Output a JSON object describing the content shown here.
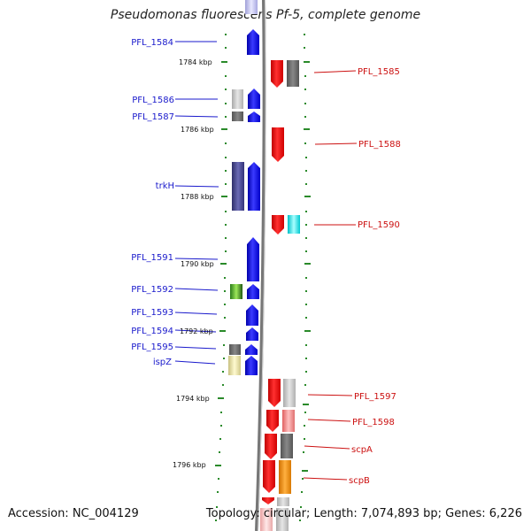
{
  "title": "Pseudomonas fluorescens Pf-5, complete genome",
  "footer": {
    "accession": "Accession: NC_004129",
    "topology": "Topology: circular; Length: 7,074,893 bp; Genes: 6,226"
  },
  "colors": {
    "left_label": "#1a1acc",
    "right_label": "#cc1111",
    "tick_green": "#2a8a2a",
    "backbone": "#888888"
  },
  "kbp_labels": [
    "1784 kbp",
    "1786 kbp",
    "1788 kbp",
    "1790 kbp",
    "1792 kbp",
    "1794 kbp",
    "1796 kbp"
  ],
  "genes_left": [
    {
      "name": "PFL_1584"
    },
    {
      "name": "PFL_1586"
    },
    {
      "name": "PFL_1587"
    },
    {
      "name": "trkH"
    },
    {
      "name": "PFL_1591"
    },
    {
      "name": "PFL_1592"
    },
    {
      "name": "PFL_1593"
    },
    {
      "name": "PFL_1594"
    },
    {
      "name": "PFL_1595"
    },
    {
      "name": "ispZ"
    }
  ],
  "genes_right": [
    {
      "name": "PFL_1585"
    },
    {
      "name": "PFL_1588"
    },
    {
      "name": "PFL_1590"
    },
    {
      "name": "PFL_1597"
    },
    {
      "name": "PFL_1598"
    },
    {
      "name": "scpA"
    },
    {
      "name": "scpB"
    }
  ]
}
